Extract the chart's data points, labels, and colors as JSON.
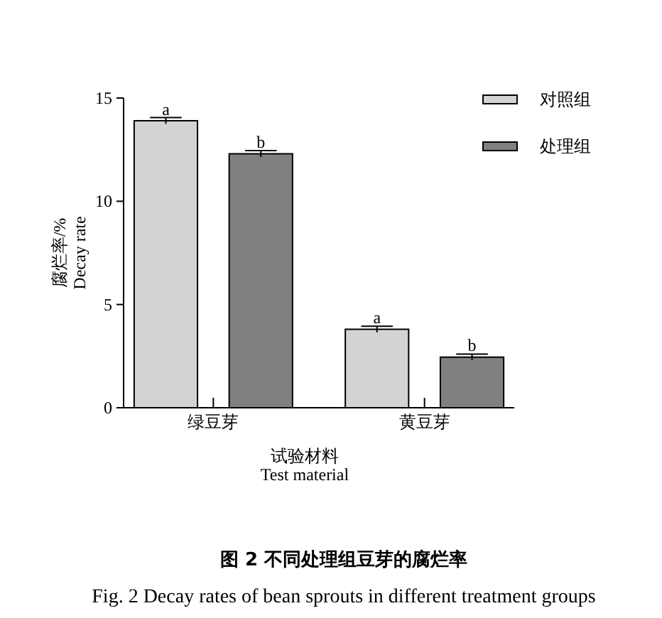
{
  "chart_data": {
    "type": "bar",
    "title": "图 2 不同处理组豆芽的腐烂率",
    "subtitle": "Fig.  2 Decay rates of bean sprouts in different treatment groups",
    "xlabel": "试验材料\nTest material",
    "ylabel": "腐烂率/%\nDecay rate",
    "categories": [
      "绿豆芽",
      "黄豆芽"
    ],
    "series": [
      {
        "name": "对照组",
        "color": "#d3d3d3",
        "values": [
          13.9,
          3.8
        ],
        "errors": [
          0.15,
          0.15
        ]
      },
      {
        "name": "处理组",
        "color": "#808080",
        "values": [
          12.3,
          2.45
        ],
        "errors": [
          0.15,
          0.15
        ]
      }
    ],
    "ylim": [
      0,
      15
    ],
    "yticks": [
      0,
      5,
      10,
      15
    ],
    "legend": "top right",
    "annotations": [
      "a",
      "b",
      "a",
      "b"
    ]
  }
}
